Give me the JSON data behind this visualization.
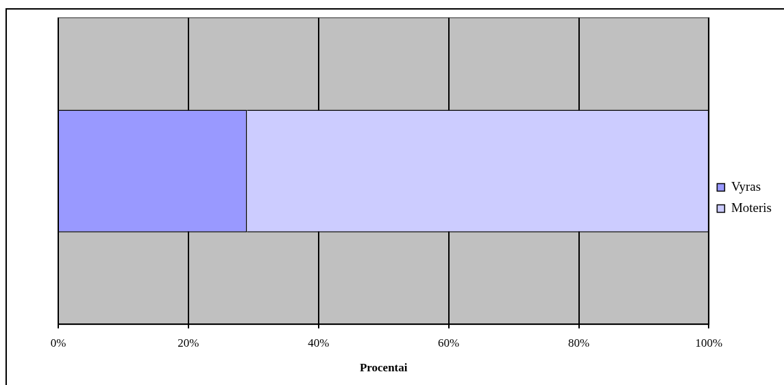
{
  "chart_data": {
    "type": "bar",
    "orientation": "horizontal",
    "stacked": true,
    "categories": [
      null
    ],
    "series": [
      {
        "name": "Vyras",
        "color": "#9999ff",
        "values": [
          29
        ]
      },
      {
        "name": "Moteris",
        "color": "#ccccff",
        "values": [
          71
        ]
      }
    ],
    "xlabel": "Procentai",
    "xlim": [
      0,
      100
    ],
    "xticks": [
      {
        "value": 0,
        "label": "0%"
      },
      {
        "value": 20,
        "label": "20%"
      },
      {
        "value": 40,
        "label": "40%"
      },
      {
        "value": 60,
        "label": "60%"
      },
      {
        "value": 80,
        "label": "80%"
      },
      {
        "value": 100,
        "label": "100%"
      }
    ],
    "grid": "x",
    "legend": "right",
    "tick_labels": "x"
  }
}
